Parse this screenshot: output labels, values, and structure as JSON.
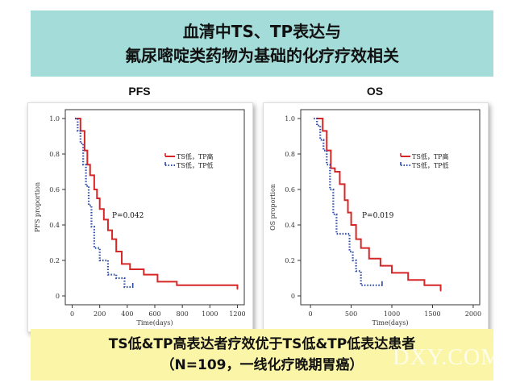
{
  "title": {
    "line1": "血清中TS、TP表达与",
    "line2": "氟尿嘧啶类药物为基础的化疗疗效相关"
  },
  "chart_data": [
    {
      "type": "line",
      "step": true,
      "panel_title": "PFS",
      "ylabel": "PFS proportion",
      "xlabel": "Time(days)",
      "xticks": [
        0,
        200,
        400,
        600,
        800,
        1000,
        1200
      ],
      "yticks": [
        "0",
        "0.2",
        "0.4",
        "0.6",
        "0.8",
        "1.0"
      ],
      "xlim": [
        -50,
        1250
      ],
      "ylim": [
        -0.05,
        1.05
      ],
      "pvalue": "P=0.042",
      "legend_position": "right",
      "series": [
        {
          "name": "TS低，TP高",
          "color": "#d62728",
          "style": "solid",
          "points": [
            [
              30,
              1.0
            ],
            [
              60,
              0.93
            ],
            [
              90,
              0.82
            ],
            [
              110,
              0.74
            ],
            [
              130,
              0.68
            ],
            [
              160,
              0.6
            ],
            [
              180,
              0.55
            ],
            [
              200,
              0.49
            ],
            [
              230,
              0.43
            ],
            [
              260,
              0.37
            ],
            [
              290,
              0.32
            ],
            [
              320,
              0.25
            ],
            [
              360,
              0.18
            ],
            [
              420,
              0.15
            ],
            [
              520,
              0.12
            ],
            [
              620,
              0.08
            ],
            [
              760,
              0.06
            ],
            [
              1000,
              0.06
            ],
            [
              1200,
              0.04
            ]
          ],
          "end_x": 1200
        },
        {
          "name": "TS低，TP低",
          "color": "#2d4aa8",
          "style": "dotted",
          "points": [
            [
              20,
              1.0
            ],
            [
              40,
              0.93
            ],
            [
              60,
              0.86
            ],
            [
              80,
              0.74
            ],
            [
              100,
              0.62
            ],
            [
              120,
              0.51
            ],
            [
              140,
              0.39
            ],
            [
              160,
              0.27
            ],
            [
              200,
              0.2
            ],
            [
              260,
              0.12
            ],
            [
              320,
              0.1
            ],
            [
              380,
              0.05
            ]
          ],
          "end_x": 440
        }
      ]
    },
    {
      "type": "line",
      "step": true,
      "panel_title": "OS",
      "ylabel": "OS proportion",
      "xlabel": "Time(days)",
      "xticks": [
        0,
        500,
        1000,
        1500,
        2000
      ],
      "yticks": [
        "0",
        "0.2",
        "0.4",
        "0.6",
        "0.8",
        "1.0"
      ],
      "xlim": [
        -120,
        2080
      ],
      "ylim": [
        -0.05,
        1.05
      ],
      "pvalue": "P=0.019",
      "legend_position": "right",
      "series": [
        {
          "name": "TS低，TP高",
          "color": "#d62728",
          "style": "solid",
          "points": [
            [
              70,
              1.0
            ],
            [
              150,
              0.93
            ],
            [
              200,
              0.82
            ],
            [
              250,
              0.72
            ],
            [
              300,
              0.7
            ],
            [
              360,
              0.63
            ],
            [
              420,
              0.54
            ],
            [
              460,
              0.47
            ],
            [
              500,
              0.4
            ],
            [
              560,
              0.32
            ],
            [
              620,
              0.27
            ],
            [
              720,
              0.21
            ],
            [
              860,
              0.17
            ],
            [
              1000,
              0.13
            ],
            [
              1200,
              0.09
            ],
            [
              1400,
              0.06
            ],
            [
              1600,
              0.03
            ]
          ],
          "end_x": 1600
        },
        {
          "name": "TS低，TP低",
          "color": "#2d4aa8",
          "style": "dotted",
          "points": [
            [
              40,
              1.0
            ],
            [
              80,
              0.96
            ],
            [
              120,
              0.88
            ],
            [
              160,
              0.82
            ],
            [
              200,
              0.74
            ],
            [
              240,
              0.6
            ],
            [
              280,
              0.46
            ],
            [
              320,
              0.35
            ],
            [
              440,
              0.35
            ],
            [
              480,
              0.25
            ],
            [
              520,
              0.2
            ],
            [
              560,
              0.14
            ],
            [
              620,
              0.06
            ]
          ],
          "end_x": 880
        }
      ]
    }
  ],
  "conclusion": {
    "line1": "TS低&TP高表达者疗效优于TS低&TP低表达患者",
    "line2": "（N=109，一线化疗晚期胃癌）"
  },
  "watermark": "DXY.COM"
}
